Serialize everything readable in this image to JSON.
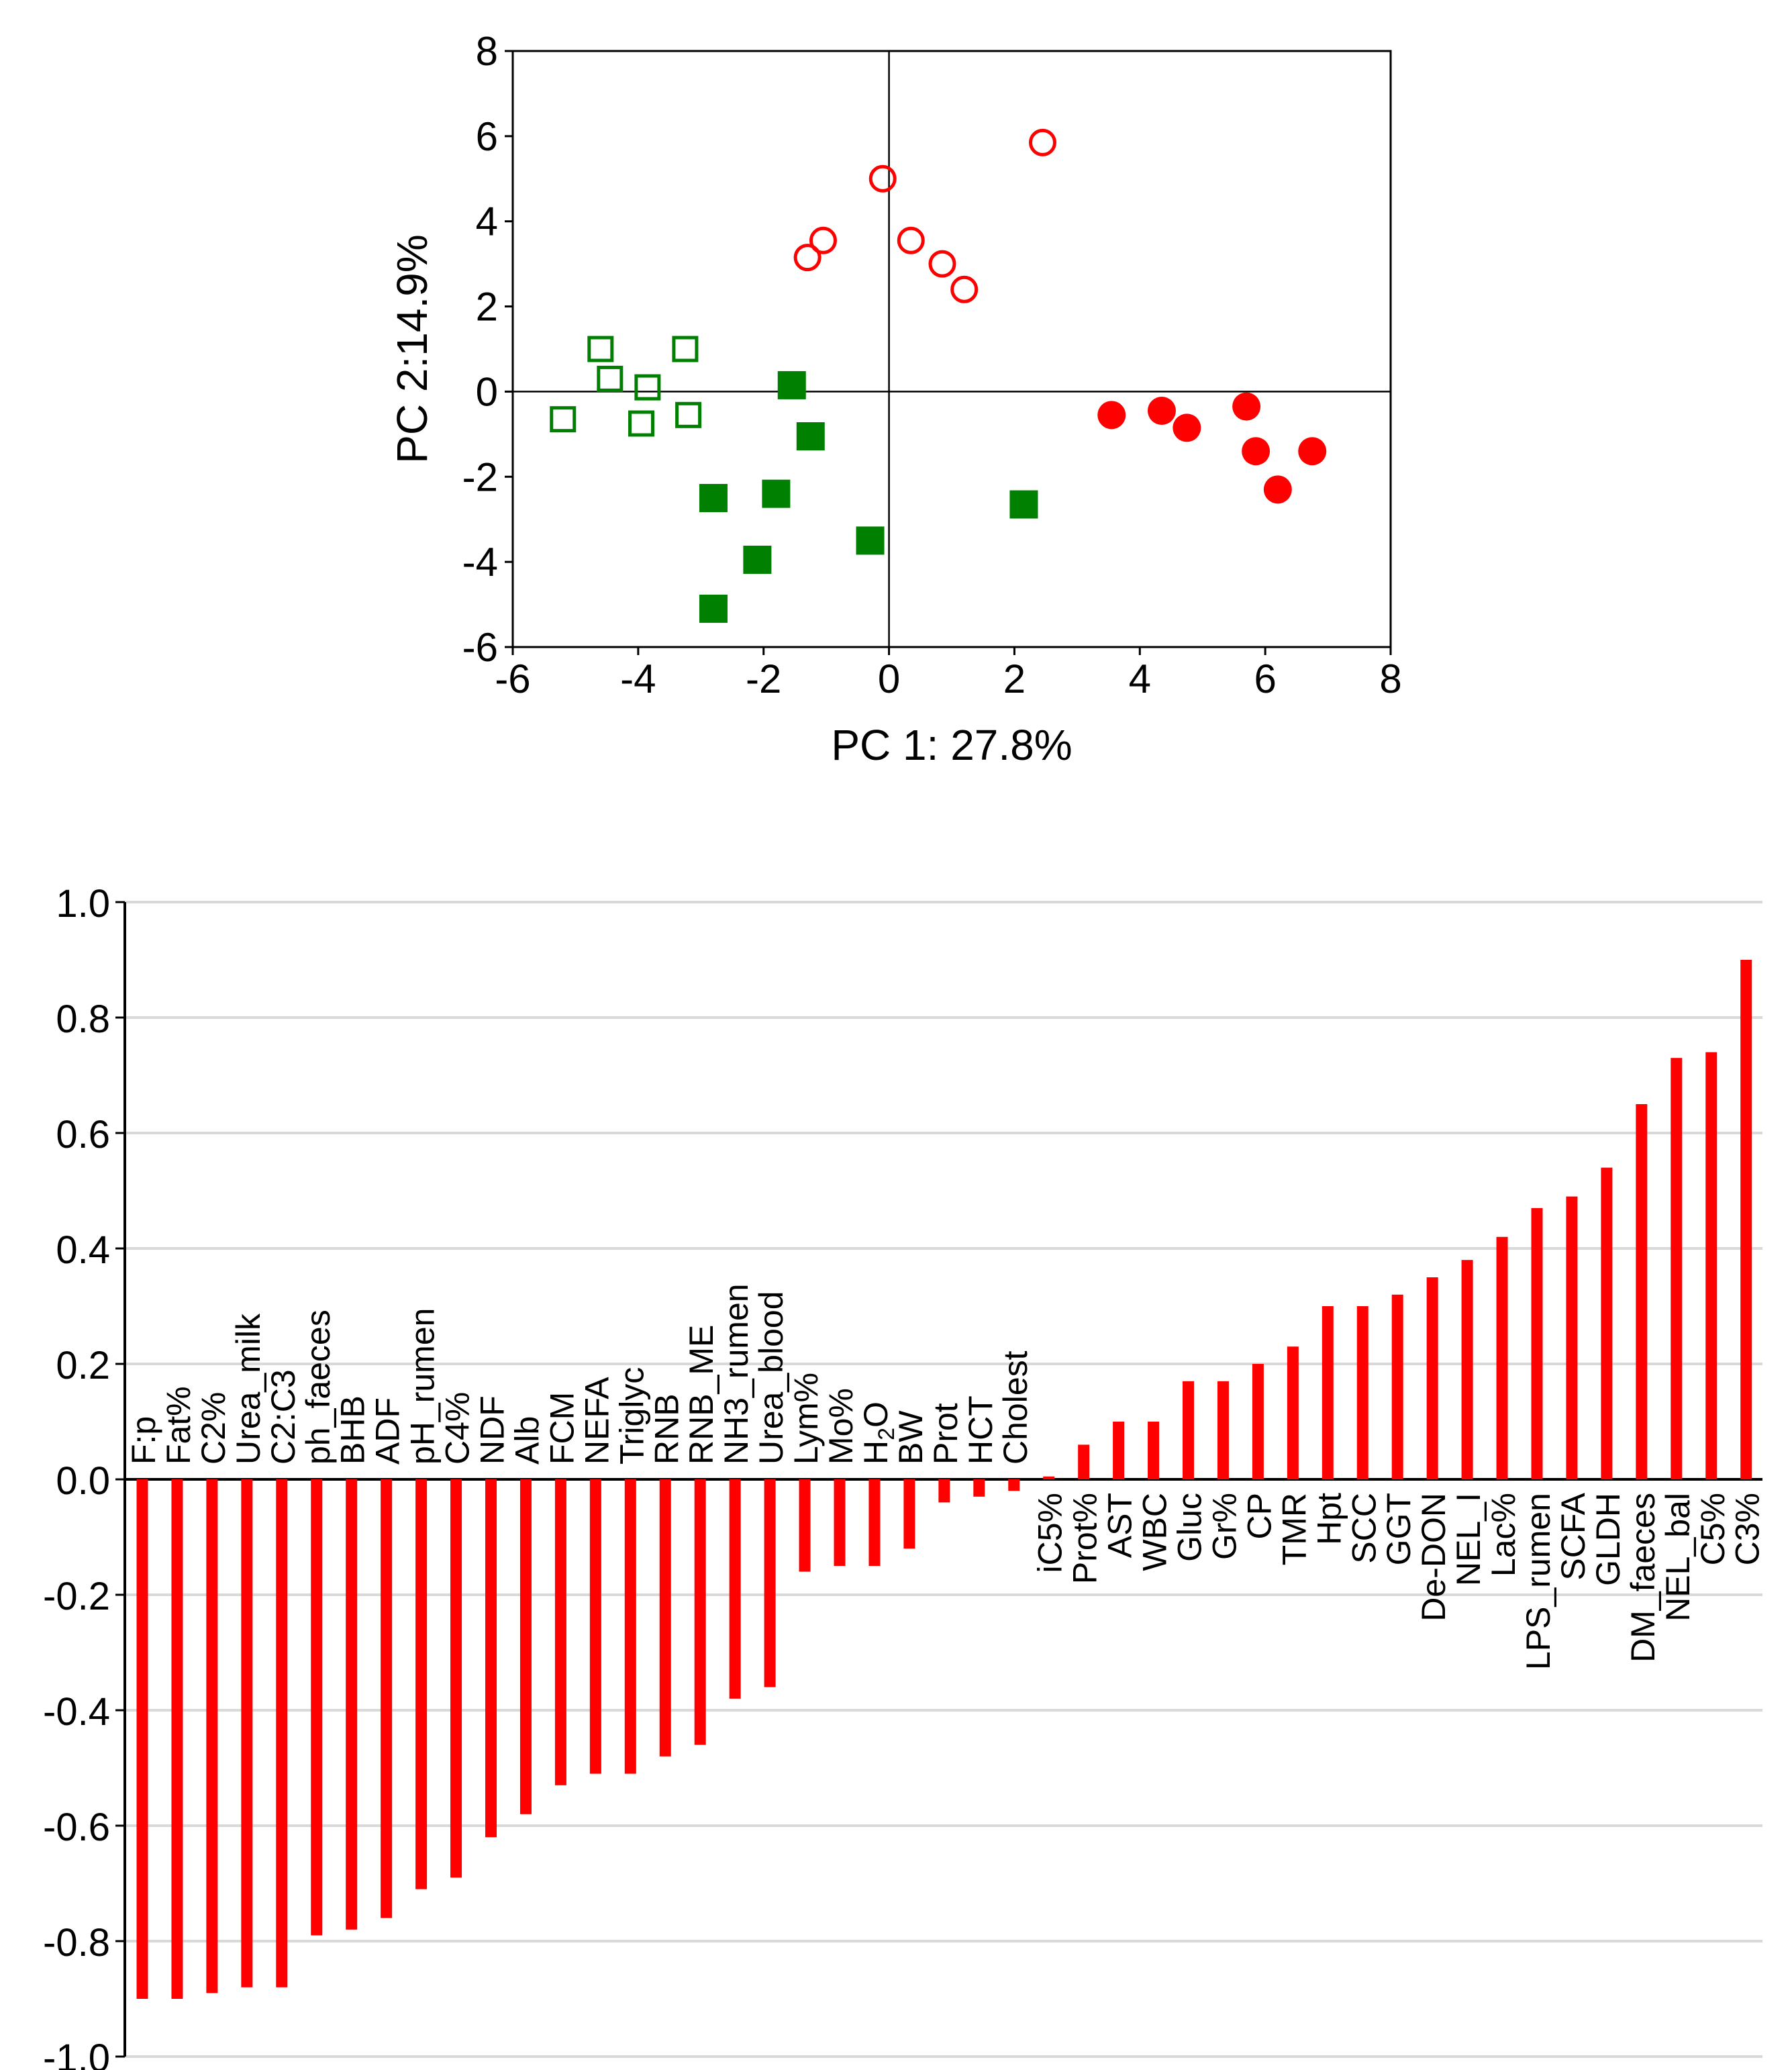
{
  "chart_data": [
    {
      "type": "scatter",
      "xlabel": "PC 1: 27.8%",
      "ylabel": "PC 2:14.9%",
      "xlim": [
        -6,
        8
      ],
      "ylim": [
        -6,
        8
      ],
      "xticks": [
        "-6",
        "-4",
        "-2",
        "0",
        "2",
        "4",
        "6",
        "8"
      ],
      "yticks": [
        "-6",
        "-4",
        "-2",
        "0",
        "2",
        "4",
        "6",
        "8"
      ],
      "colors": {
        "green": "#008000",
        "red": "#ff0000"
      },
      "series": [
        {
          "name": "open-squares",
          "color": "#008000",
          "marker": "square",
          "filled": false,
          "points": [
            [
              -5.2,
              -0.65
            ],
            [
              -4.6,
              1.0
            ],
            [
              -4.45,
              0.3
            ],
            [
              -3.95,
              -0.75
            ],
            [
              -3.85,
              0.1
            ],
            [
              -3.25,
              1.0
            ],
            [
              -3.2,
              -0.55
            ]
          ]
        },
        {
          "name": "filled-squares",
          "color": "#008000",
          "marker": "square",
          "filled": true,
          "points": [
            [
              -2.8,
              -2.5
            ],
            [
              -2.8,
              -5.1
            ],
            [
              -2.1,
              -3.95
            ],
            [
              -1.8,
              -2.4
            ],
            [
              -1.55,
              0.15
            ],
            [
              -1.25,
              -1.05
            ],
            [
              -0.3,
              -3.5
            ],
            [
              2.15,
              -2.65
            ]
          ]
        },
        {
          "name": "open-circles",
          "color": "#ff0000",
          "marker": "circle",
          "filled": false,
          "points": [
            [
              -1.3,
              3.15
            ],
            [
              -1.05,
              3.55
            ],
            [
              -0.1,
              5.0
            ],
            [
              0.35,
              3.55
            ],
            [
              0.85,
              3.0
            ],
            [
              1.2,
              2.4
            ],
            [
              2.45,
              5.85
            ]
          ]
        },
        {
          "name": "filled-circles",
          "color": "#ff0000",
          "marker": "circle",
          "filled": true,
          "points": [
            [
              3.55,
              -0.55
            ],
            [
              4.35,
              -0.45
            ],
            [
              4.75,
              -0.85
            ],
            [
              5.7,
              -0.35
            ],
            [
              5.85,
              -1.4
            ],
            [
              6.2,
              -2.3
            ],
            [
              6.75,
              -1.4
            ]
          ]
        }
      ]
    },
    {
      "type": "bar",
      "ylim": [
        -1.0,
        1.0
      ],
      "yticks": [
        "-1.0",
        "-0.8",
        "-0.6",
        "-0.4",
        "-0.2",
        "0.0",
        "0.2",
        "0.4",
        "0.6",
        "0.8",
        "1.0"
      ],
      "bar_color": "#ff0000",
      "categories": [
        "F:p",
        "Fat%",
        "C2%",
        "Urea_milk",
        "C2:C3",
        "ph_faeces",
        "BHB",
        "ADF",
        "pH_rumen",
        "C4%",
        "NDF",
        "Alb",
        "FCM",
        "NEFA",
        "Triglyc",
        "RNB",
        "RNB_ME",
        "NH3_rumen",
        "Urea_blood",
        "Lym%",
        "Mo%",
        "H2O",
        "BW",
        "Prot",
        "HCT",
        "Cholest",
        "iC5%",
        "Prot%",
        "AST",
        "WBC",
        "Gluc",
        "Gr%",
        "CP",
        "TMR",
        "Hpt",
        "SCC",
        "GGT",
        "De-DON",
        "NEL_I",
        "Lac%",
        "LPS_rumen",
        "SCFA",
        "GLDH",
        "DM_faeces",
        "NEL_bal",
        "C5%",
        "C3%"
      ],
      "values": [
        -0.9,
        -0.9,
        -0.89,
        -0.88,
        -0.88,
        -0.79,
        -0.78,
        -0.76,
        -0.71,
        -0.69,
        -0.62,
        -0.58,
        -0.53,
        -0.51,
        -0.51,
        -0.48,
        -0.46,
        -0.38,
        -0.36,
        -0.16,
        -0.15,
        -0.15,
        -0.12,
        -0.04,
        -0.03,
        -0.02,
        0.005,
        0.06,
        0.1,
        0.1,
        0.17,
        0.17,
        0.2,
        0.23,
        0.3,
        0.3,
        0.32,
        0.35,
        0.38,
        0.42,
        0.47,
        0.49,
        0.54,
        0.65,
        0.73,
        0.74,
        0.9
      ]
    }
  ]
}
